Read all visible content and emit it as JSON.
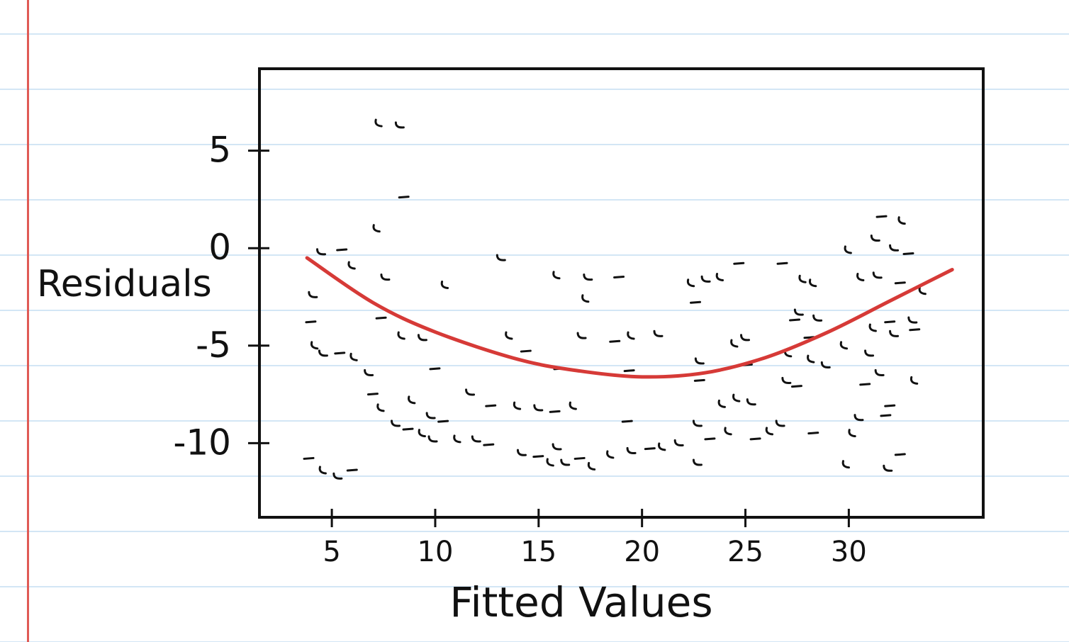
{
  "chart_data": {
    "type": "scatter",
    "title": "",
    "xlabel": "Fitted Values",
    "ylabel": "Residuals",
    "xlim": [
      1.5,
      36.5
    ],
    "ylim": [
      -13.8,
      9.2
    ],
    "x_ticks": [
      5,
      10,
      15,
      20,
      25,
      30
    ],
    "x_tick_labels": [
      "5",
      "10",
      "15",
      "20",
      "25",
      "30"
    ],
    "y_ticks": [
      5,
      0,
      -5,
      -10
    ],
    "y_tick_labels": [
      "5",
      "0",
      "-5",
      "-10"
    ],
    "grid": false,
    "series": [
      {
        "points": [
          [
            4.5,
            -0.2
          ],
          [
            5.5,
            -0.1
          ],
          [
            6.0,
            -0.9
          ],
          [
            4.1,
            -2.4
          ],
          [
            4.0,
            -3.8
          ],
          [
            4.2,
            -5.0
          ],
          [
            4.6,
            -5.4
          ],
          [
            5.4,
            -5.4
          ],
          [
            6.1,
            -5.6
          ],
          [
            6.8,
            -6.4
          ],
          [
            7.0,
            -7.5
          ],
          [
            7.4,
            -8.2
          ],
          [
            8.1,
            -9.0
          ],
          [
            8.7,
            -9.3
          ],
          [
            9.4,
            -9.5
          ],
          [
            9.9,
            -9.8
          ],
          [
            3.9,
            -10.8
          ],
          [
            4.6,
            -11.4
          ],
          [
            5.3,
            -11.7
          ],
          [
            6.0,
            -11.4
          ],
          [
            7.3,
            6.4
          ],
          [
            8.3,
            6.3
          ],
          [
            8.5,
            2.6
          ],
          [
            7.2,
            1.0
          ],
          [
            7.6,
            -1.5
          ],
          [
            7.4,
            -3.6
          ],
          [
            8.4,
            -4.5
          ],
          [
            9.4,
            -4.6
          ],
          [
            10.0,
            -6.2
          ],
          [
            8.9,
            -7.8
          ],
          [
            9.8,
            -8.6
          ],
          [
            10.4,
            -8.9
          ],
          [
            11.1,
            -9.8
          ],
          [
            12.0,
            -9.8
          ],
          [
            12.6,
            -10.1
          ],
          [
            10.5,
            -1.9
          ],
          [
            11.7,
            -7.4
          ],
          [
            12.7,
            -8.1
          ],
          [
            13.6,
            -4.5
          ],
          [
            13.2,
            -0.5
          ],
          [
            14.4,
            -5.3
          ],
          [
            14.0,
            -8.1
          ],
          [
            15.0,
            -8.2
          ],
          [
            15.8,
            -8.4
          ],
          [
            16.7,
            -8.1
          ],
          [
            14.2,
            -10.5
          ],
          [
            15.0,
            -10.7
          ],
          [
            15.6,
            -11.0
          ],
          [
            16.3,
            -11.0
          ],
          [
            17.0,
            -10.8
          ],
          [
            17.6,
            -11.2
          ],
          [
            15.9,
            -10.2
          ],
          [
            16.0,
            -6.2
          ],
          [
            18.5,
            -10.6
          ],
          [
            19.5,
            -10.4
          ],
          [
            20.4,
            -10.3
          ],
          [
            21.0,
            -10.2
          ],
          [
            21.8,
            -10.0
          ],
          [
            19.3,
            -8.9
          ],
          [
            15.9,
            -1.4
          ],
          [
            17.4,
            -1.5
          ],
          [
            18.9,
            -1.5
          ],
          [
            17.3,
            -2.6
          ],
          [
            17.1,
            -4.5
          ],
          [
            18.7,
            -4.8
          ],
          [
            19.5,
            -4.5
          ],
          [
            20.8,
            -4.4
          ],
          [
            19.4,
            -6.3
          ],
          [
            22.4,
            -1.8
          ],
          [
            23.1,
            -1.6
          ],
          [
            22.6,
            -2.8
          ],
          [
            23.8,
            -1.5
          ],
          [
            22.8,
            -5.8
          ],
          [
            22.8,
            -6.8
          ],
          [
            23.9,
            -8.0
          ],
          [
            22.7,
            -9.0
          ],
          [
            23.3,
            -9.8
          ],
          [
            24.2,
            -9.4
          ],
          [
            22.7,
            -11.0
          ],
          [
            24.7,
            -0.8
          ],
          [
            24.5,
            -4.9
          ],
          [
            25.0,
            -4.6
          ],
          [
            25.1,
            -6.0
          ],
          [
            24.6,
            -7.7
          ],
          [
            25.3,
            -7.9
          ],
          [
            25.5,
            -9.8
          ],
          [
            26.2,
            -9.4
          ],
          [
            26.7,
            -9.0
          ],
          [
            26.8,
            -0.8
          ],
          [
            27.8,
            -1.6
          ],
          [
            27.6,
            -3.3
          ],
          [
            27.4,
            -3.7
          ],
          [
            27.1,
            -5.4
          ],
          [
            27.0,
            -6.8
          ],
          [
            27.5,
            -7.1
          ],
          [
            28.3,
            -1.8
          ],
          [
            28.5,
            -3.6
          ],
          [
            28.1,
            -4.6
          ],
          [
            28.2,
            -5.7
          ],
          [
            28.9,
            -6.0
          ],
          [
            28.3,
            -9.5
          ],
          [
            30.0,
            -0.1
          ],
          [
            31.3,
            0.5
          ],
          [
            31.6,
            1.6
          ],
          [
            32.6,
            1.4
          ],
          [
            32.2,
            0.0
          ],
          [
            32.9,
            -0.3
          ],
          [
            30.6,
            -1.5
          ],
          [
            31.4,
            -1.4
          ],
          [
            32.5,
            -1.8
          ],
          [
            33.6,
            -2.2
          ],
          [
            33.1,
            -3.7
          ],
          [
            32.0,
            -3.8
          ],
          [
            31.2,
            -4.1
          ],
          [
            32.2,
            -4.4
          ],
          [
            33.2,
            -4.2
          ],
          [
            29.8,
            -5.0
          ],
          [
            31.0,
            -5.4
          ],
          [
            30.8,
            -7.0
          ],
          [
            33.2,
            -6.8
          ],
          [
            31.5,
            -6.4
          ],
          [
            32.0,
            -8.1
          ],
          [
            30.2,
            -9.5
          ],
          [
            30.5,
            -8.7
          ],
          [
            31.8,
            -8.6
          ],
          [
            29.9,
            -11.1
          ],
          [
            31.9,
            -11.3
          ],
          [
            32.5,
            -10.6
          ]
        ]
      }
    ],
    "trend_line": [
      [
        3.8,
        -0.5
      ],
      [
        7.0,
        -2.8
      ],
      [
        10.0,
        -4.3
      ],
      [
        14.0,
        -5.7
      ],
      [
        17.0,
        -6.3
      ],
      [
        20.0,
        -6.6
      ],
      [
        23.0,
        -6.4
      ],
      [
        26.0,
        -5.6
      ],
      [
        29.0,
        -4.3
      ],
      [
        32.0,
        -2.7
      ],
      [
        35.0,
        -1.1
      ]
    ],
    "trend_color": "#d63a37"
  }
}
